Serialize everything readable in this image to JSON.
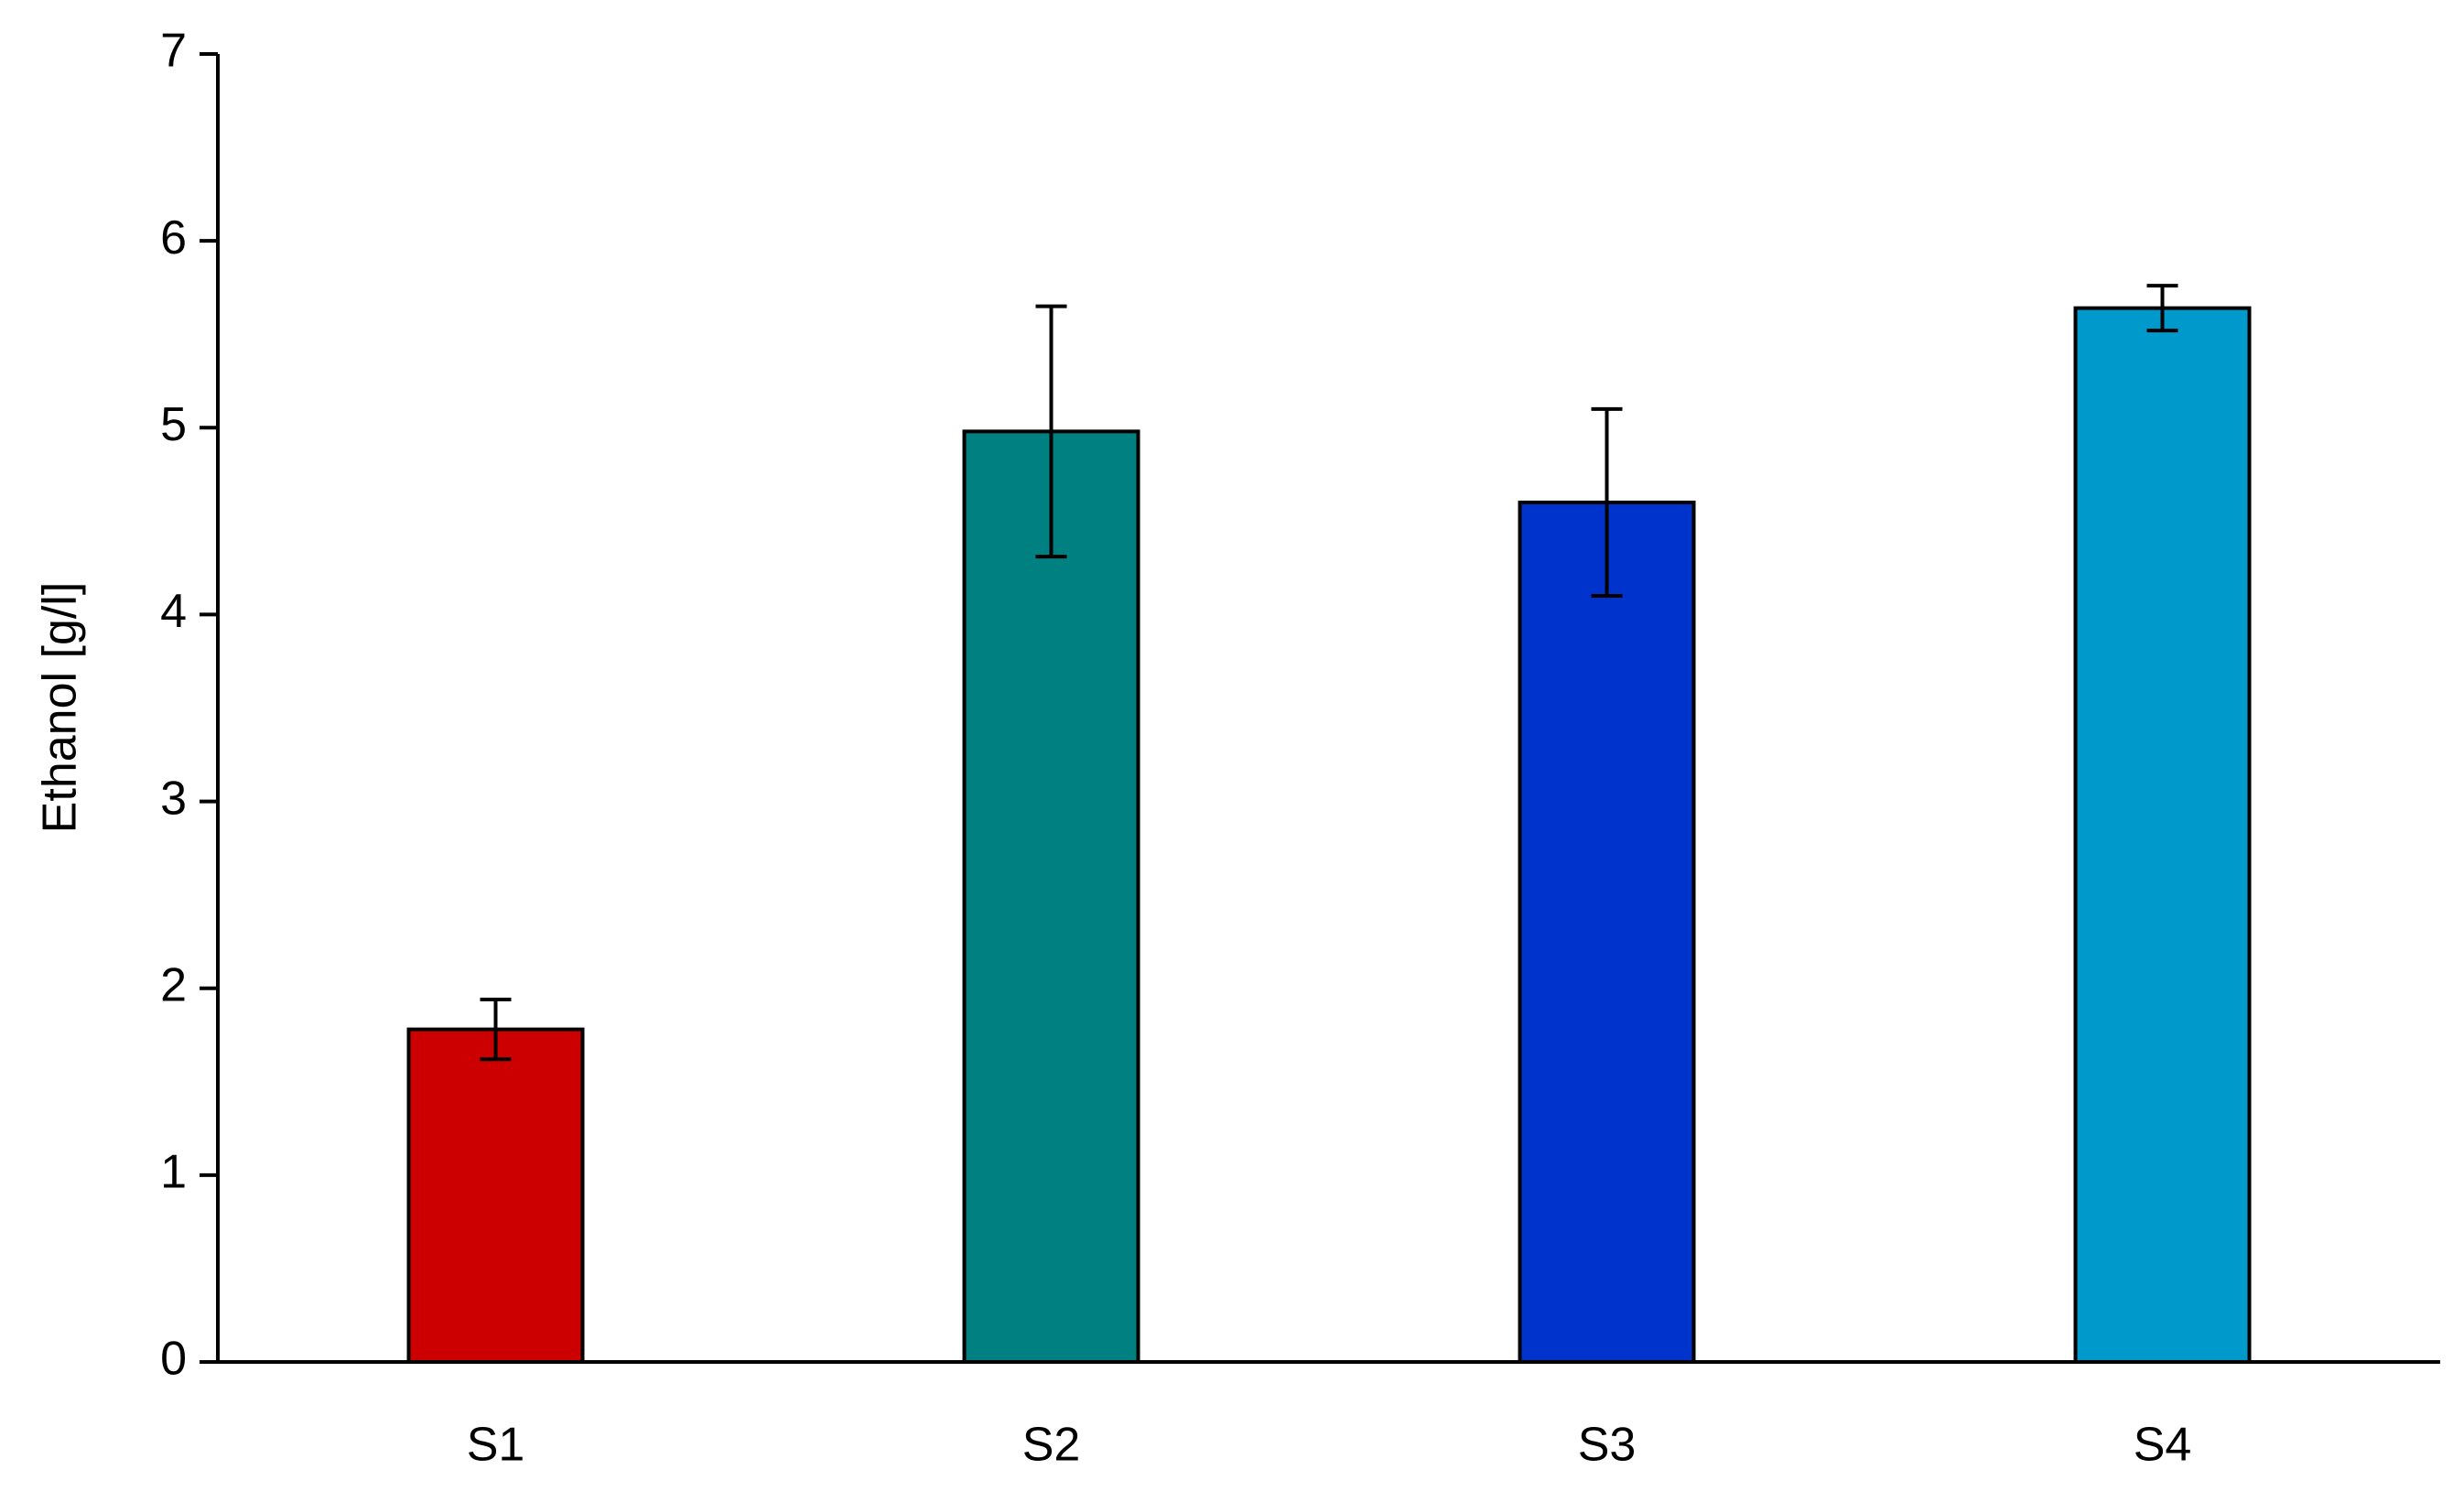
{
  "chart_data": {
    "type": "bar",
    "y_label": "Ethanol [g/l]",
    "categories": [
      "S1",
      "S2",
      "S3",
      "S4"
    ],
    "values": [
      1.78,
      4.98,
      4.6,
      5.64
    ],
    "errors": [
      0.16,
      0.67,
      0.5,
      0.12
    ],
    "colors": [
      "#cc0000",
      "#008080",
      "#0033cc",
      "#0099cc"
    ],
    "ylim": [
      0,
      7
    ],
    "yticks": [
      0,
      1,
      2,
      3,
      4,
      5,
      6,
      7
    ],
    "grid": false
  }
}
